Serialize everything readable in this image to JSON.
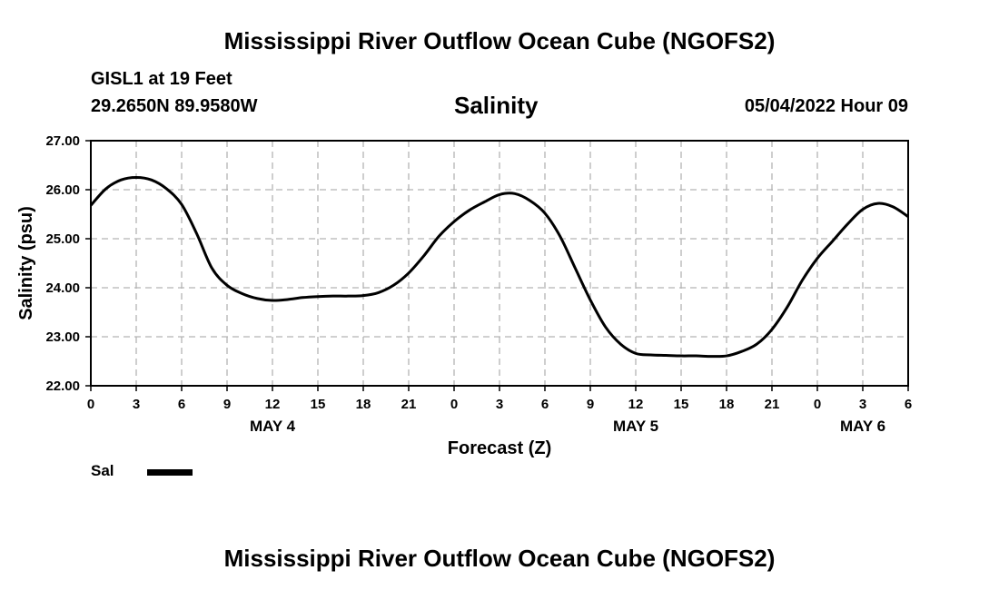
{
  "header": {
    "main_title": "Mississippi River Outflow Ocean Cube (NGOFS2)",
    "station": "GISL1 at 19 Feet",
    "coords": "29.2650N  89.9580W",
    "datetime": "05/04/2022 Hour 09",
    "footer_title": "Mississippi River Outflow Ocean Cube (NGOFS2)"
  },
  "legend": {
    "label": "Sal",
    "color": "#000000"
  },
  "chart_data": {
    "type": "line",
    "title": "Salinity",
    "xlabel": "Forecast (Z)",
    "ylabel": "Salinity (psu)",
    "ylim": [
      22.0,
      27.0
    ],
    "xlim": [
      0,
      54
    ],
    "grid": true,
    "y_ticks": [
      "22.00",
      "23.00",
      "24.00",
      "25.00",
      "26.00",
      "27.00"
    ],
    "x_ticks": [
      "0",
      "3",
      "6",
      "9",
      "12",
      "15",
      "18",
      "21",
      "0",
      "3",
      "6",
      "9",
      "12",
      "15",
      "18",
      "21",
      "0",
      "3",
      "6"
    ],
    "date_labels": [
      {
        "label": "MAY 4",
        "hour": 12
      },
      {
        "label": "MAY 5",
        "hour": 36
      },
      {
        "label": "MAY 6",
        "hour": 51
      }
    ],
    "series": [
      {
        "name": "Sal",
        "x": [
          0,
          1,
          2,
          3,
          4,
          5,
          6,
          7,
          8,
          9,
          10,
          11,
          12,
          13,
          14,
          15,
          16,
          17,
          18,
          19,
          20,
          21,
          22,
          23,
          24,
          25,
          26,
          27,
          28,
          29,
          30,
          31,
          32,
          33,
          34,
          35,
          36,
          37,
          38,
          39,
          40,
          41,
          42,
          43,
          44,
          45,
          46,
          47,
          48,
          49,
          50,
          51,
          52,
          53,
          54
        ],
        "values": [
          25.68,
          26.02,
          26.2,
          26.25,
          26.2,
          26.02,
          25.7,
          25.1,
          24.4,
          24.05,
          23.88,
          23.78,
          23.74,
          23.76,
          23.8,
          23.82,
          23.83,
          23.83,
          23.84,
          23.9,
          24.05,
          24.3,
          24.65,
          25.05,
          25.35,
          25.58,
          25.75,
          25.9,
          25.92,
          25.78,
          25.52,
          25.05,
          24.4,
          23.75,
          23.2,
          22.85,
          22.66,
          22.63,
          22.62,
          22.61,
          22.61,
          22.6,
          22.61,
          22.7,
          22.85,
          23.15,
          23.6,
          24.15,
          24.6,
          24.95,
          25.3,
          25.6,
          25.72,
          25.65,
          25.45
        ]
      }
    ]
  }
}
